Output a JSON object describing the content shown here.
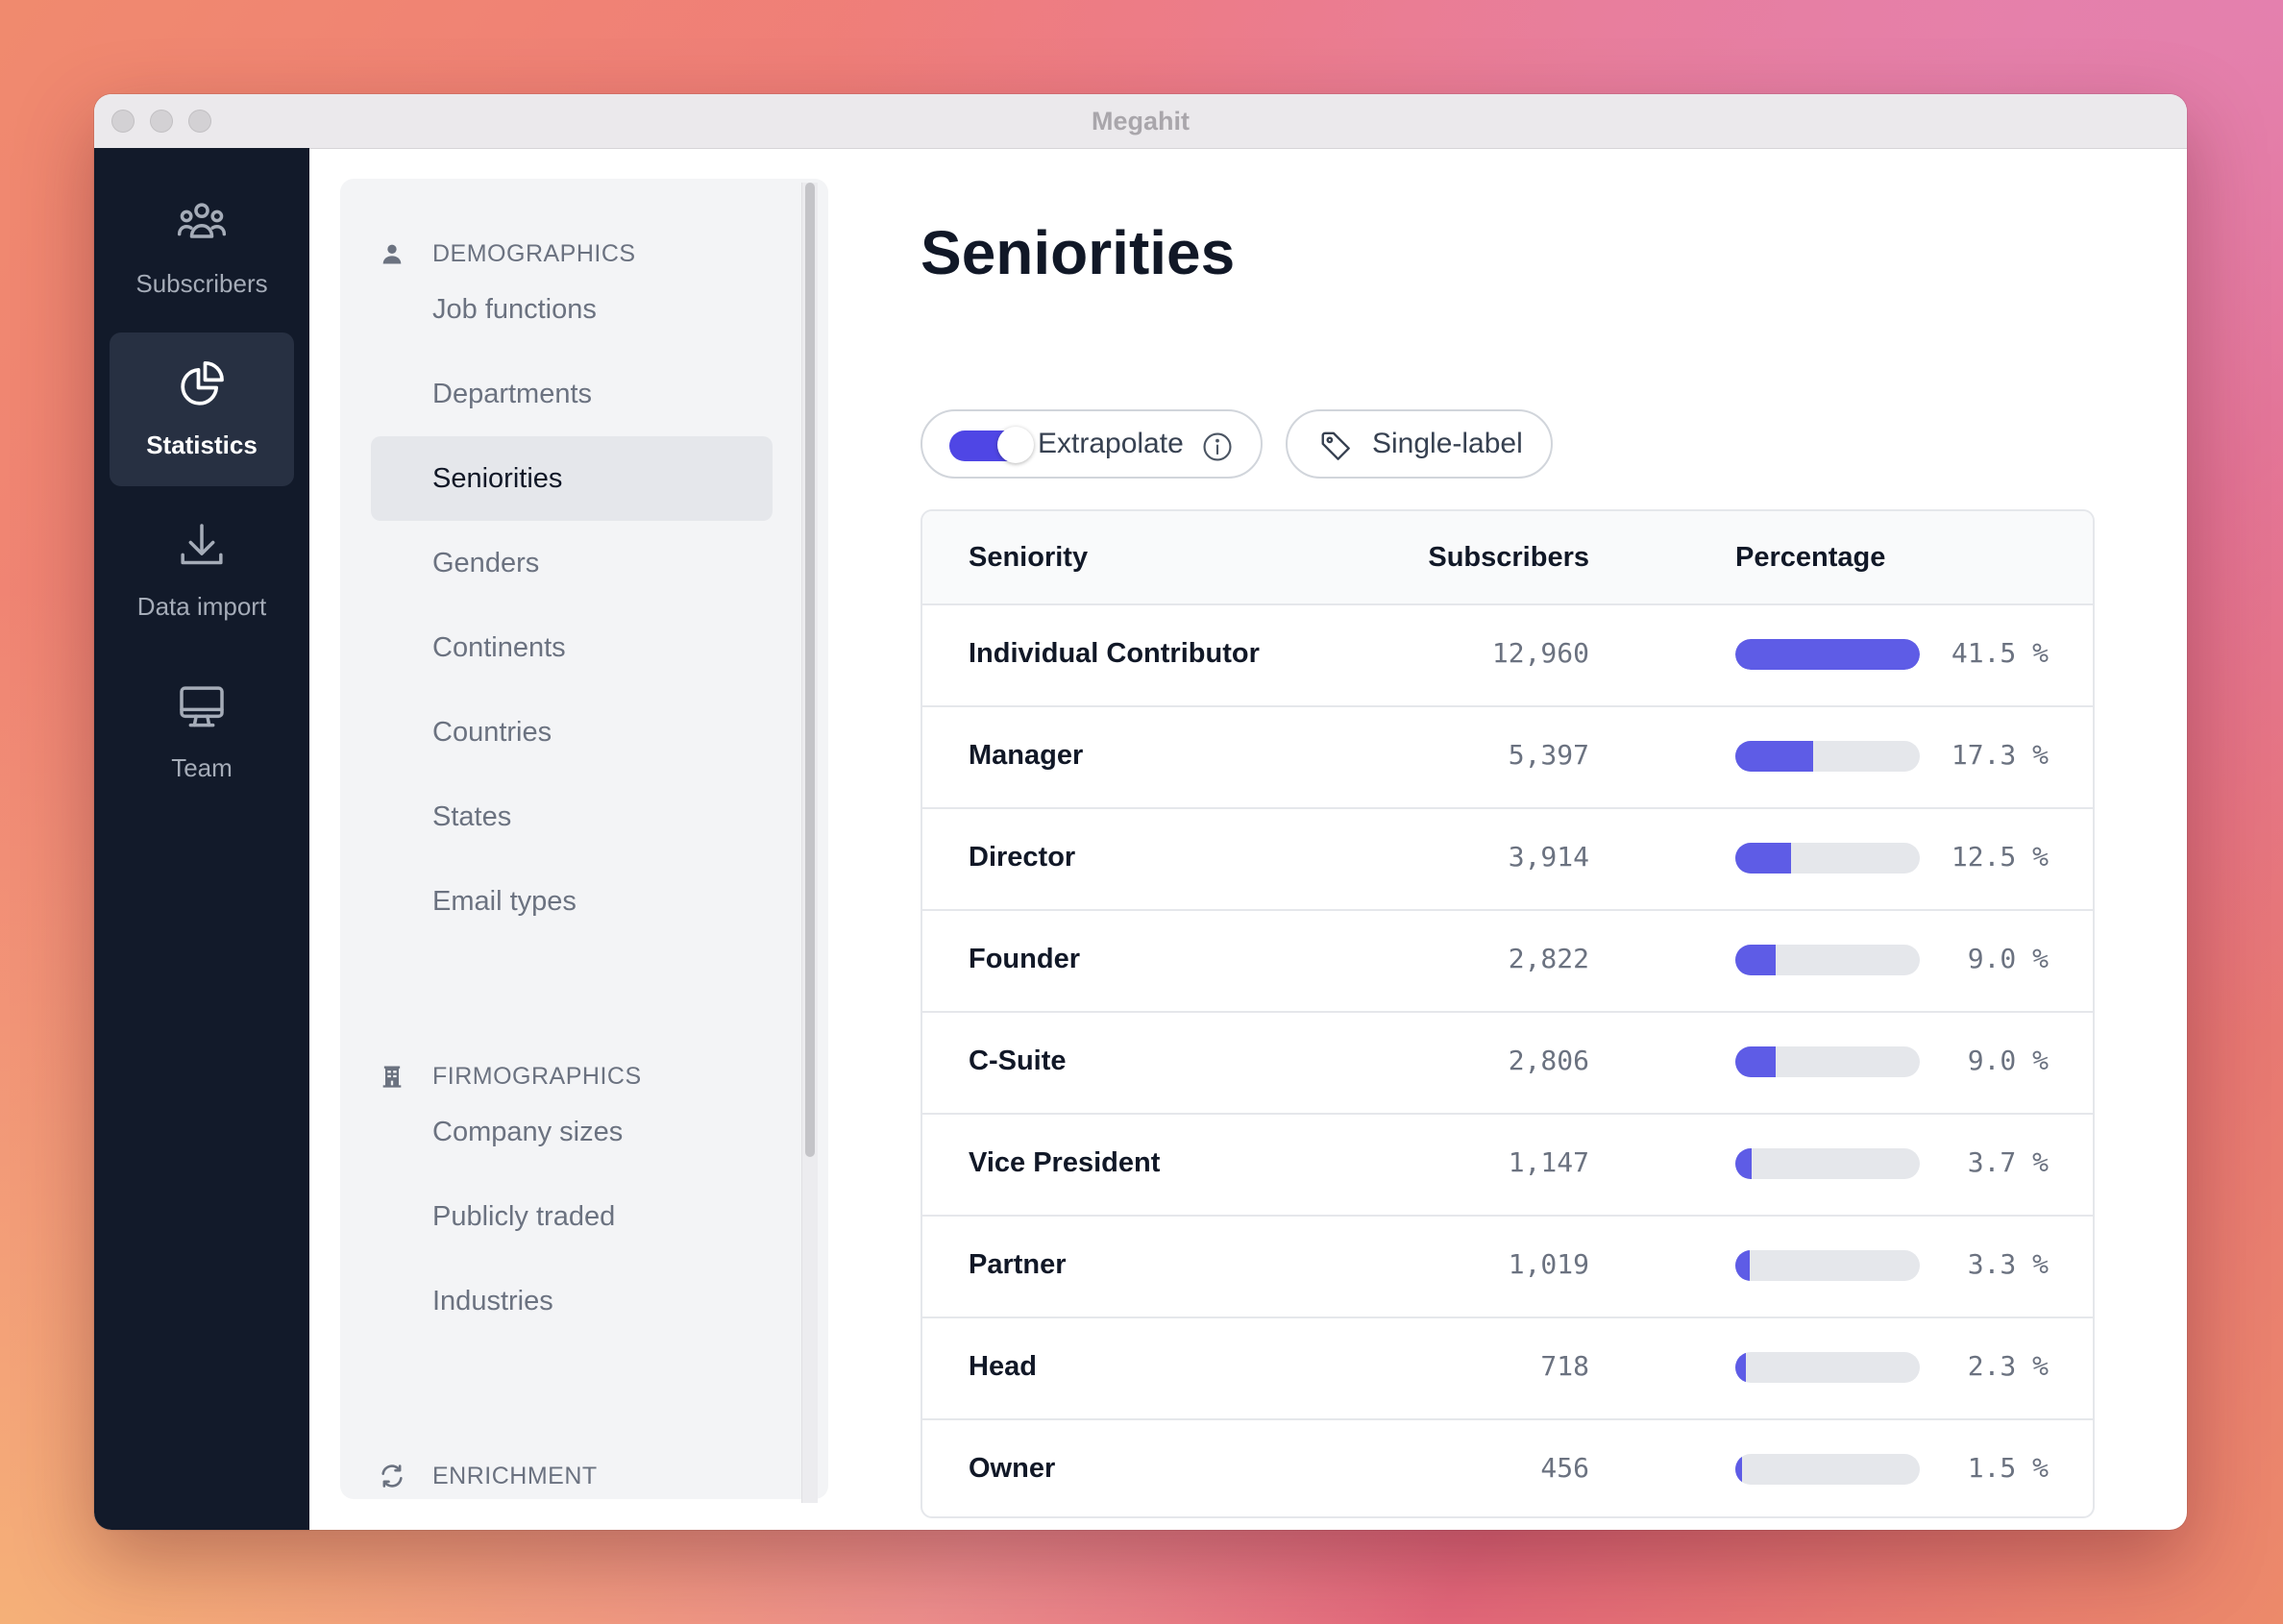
{
  "window": {
    "title": "Megahit"
  },
  "rail": {
    "items": [
      {
        "label": "Subscribers",
        "icon": "users-icon",
        "active": false
      },
      {
        "label": "Statistics",
        "icon": "pie-chart-icon",
        "active": true
      },
      {
        "label": "Data import",
        "icon": "download-icon",
        "active": false
      },
      {
        "label": "Team",
        "icon": "monitor-icon",
        "active": false
      }
    ]
  },
  "subnav": {
    "demographics": {
      "title": "DEMOGRAPHICS",
      "items": [
        "Job functions",
        "Departments",
        "Seniorities",
        "Genders",
        "Continents",
        "Countries",
        "States",
        "Email types"
      ]
    },
    "firmographics": {
      "title": "FIRMOGRAPHICS",
      "items": [
        "Company sizes",
        "Publicly traded",
        "Industries"
      ]
    },
    "enrichment": {
      "title": "ENRICHMENT"
    },
    "active_item": "Seniorities"
  },
  "main": {
    "title": "Seniorities",
    "extrapolate": {
      "label": "Extrapolate",
      "on": true
    },
    "single_label": {
      "label": "Single-label"
    },
    "table": {
      "headers": {
        "seniority": "Seniority",
        "subscribers": "Subscribers",
        "percentage": "Percentage"
      },
      "rows": [
        {
          "name": "Individual Contributor",
          "count": "12,960",
          "pct": "41.5 %",
          "fraction": 1.0
        },
        {
          "name": "Manager",
          "count": "5,397",
          "pct": "17.3 %",
          "fraction": 0.42
        },
        {
          "name": "Director",
          "count": "3,914",
          "pct": "12.5 %",
          "fraction": 0.3
        },
        {
          "name": "Founder",
          "count": "2,822",
          "pct": " 9.0 %",
          "fraction": 0.22
        },
        {
          "name": "C-Suite",
          "count": "2,806",
          "pct": " 9.0 %",
          "fraction": 0.22
        },
        {
          "name": "Vice President",
          "count": "1,147",
          "pct": " 3.7 %",
          "fraction": 0.09
        },
        {
          "name": "Partner",
          "count": "1,019",
          "pct": " 3.3 %",
          "fraction": 0.08
        },
        {
          "name": "Head",
          "count": "718",
          "pct": " 2.3 %",
          "fraction": 0.055
        },
        {
          "name": "Owner",
          "count": "456",
          "pct": " 1.5 %",
          "fraction": 0.035
        }
      ]
    }
  },
  "colors": {
    "accent": "#4f46e5",
    "bar": "#5e5ce6",
    "rail": "#121a2a"
  }
}
